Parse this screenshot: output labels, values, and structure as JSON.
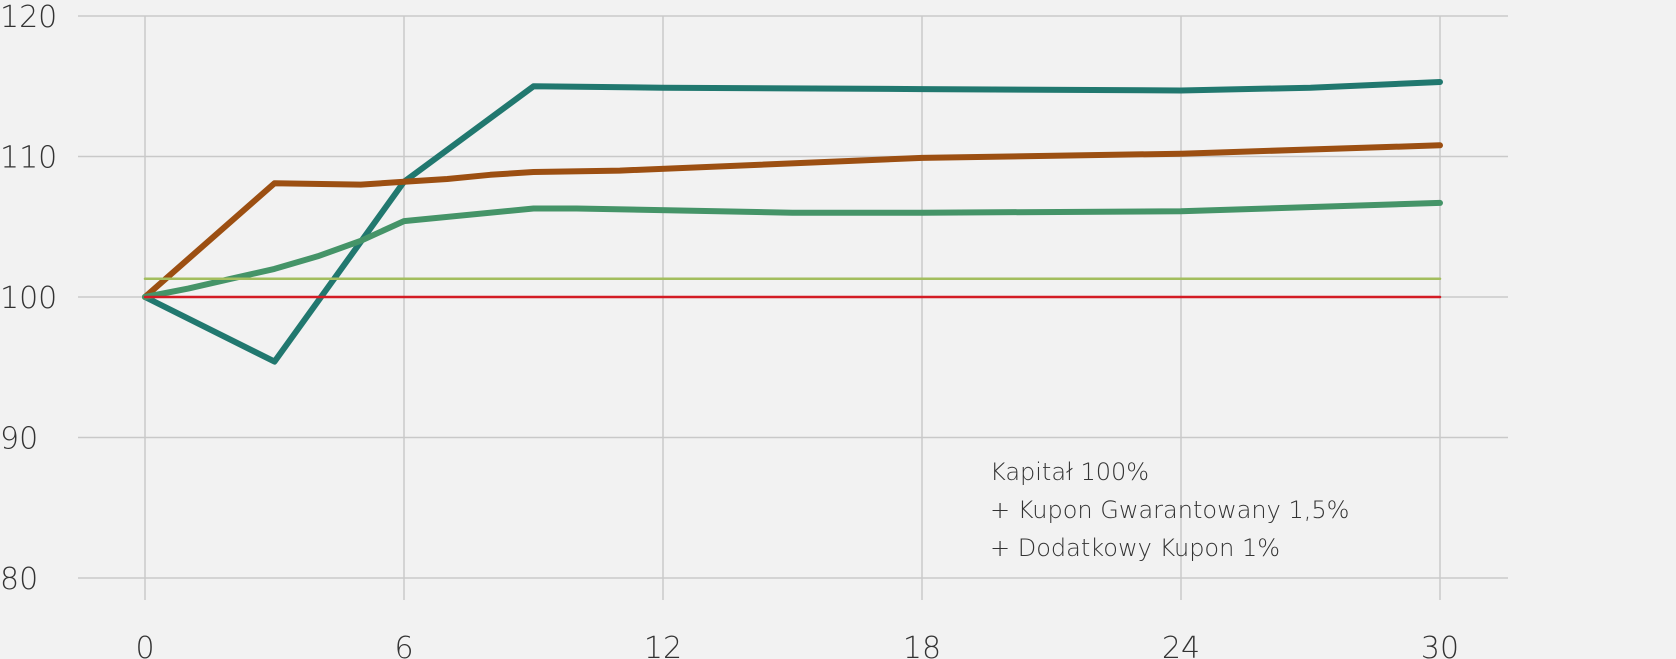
{
  "chart_data": {
    "type": "line",
    "title": "",
    "xlabel": "",
    "ylabel": "",
    "xlim": [
      0,
      30
    ],
    "ylim": [
      80,
      120
    ],
    "x_ticks": [
      0,
      6,
      12,
      18,
      24,
      30
    ],
    "y_ticks": [
      80,
      90,
      100,
      110,
      120
    ],
    "grid": true,
    "annotation": [
      "Kapitał 100%",
      "+ Kupon Gwarantowany 1,5%",
      "+ Dodatkowy Kupon 1%"
    ],
    "series": [
      {
        "color": "#21786f",
        "x": [
          0,
          3,
          6,
          9,
          12,
          18,
          24,
          27,
          30
        ],
        "y": [
          100,
          95.4,
          108.2,
          115,
          114.9,
          114.8,
          114.7,
          114.9,
          115.3
        ]
      },
      {
        "color": "#9c4f12",
        "x": [
          0,
          3,
          5,
          6,
          7,
          8,
          9,
          11,
          18,
          24,
          30
        ],
        "y": [
          100,
          108.1,
          108,
          108.2,
          108.4,
          108.7,
          108.9,
          109,
          109.9,
          110.2,
          110.8
        ]
      },
      {
        "color": "#459468",
        "x": [
          0,
          1,
          2,
          3,
          4,
          5,
          6,
          9,
          10,
          15,
          18,
          24,
          30
        ],
        "y": [
          100,
          100.6,
          101.3,
          102,
          102.9,
          104,
          105.4,
          106.3,
          106.3,
          106,
          106,
          106.1,
          106.7
        ]
      },
      {
        "color": "#a3be5e",
        "x": [
          0,
          30
        ],
        "y": [
          101.3,
          101.3
        ]
      },
      {
        "color": "#d31b24",
        "x": [
          0,
          30
        ],
        "y": [
          100,
          100
        ]
      }
    ]
  }
}
